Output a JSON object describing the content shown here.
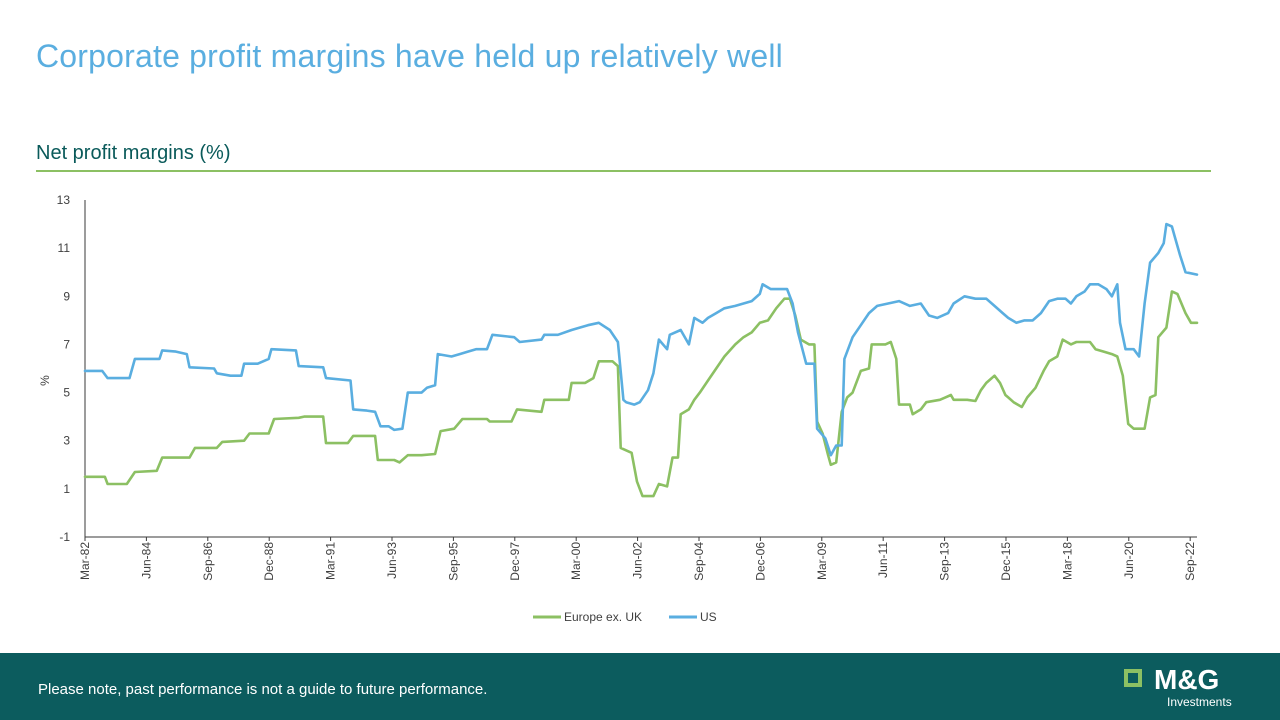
{
  "page": {
    "title": "Corporate profit margins have held up relatively well",
    "subtitle": "Net profit margins (%)",
    "disclaimer": "Please note, past performance is not a guide to future performance.",
    "logo": {
      "name": "M&G",
      "sub": "Investments"
    }
  },
  "colors": {
    "title": "#5aaee0",
    "europe": "#8cc063",
    "us": "#5aaee0",
    "footer": "#0c5c5e"
  },
  "chart_data": {
    "type": "line",
    "ylabel": "%",
    "ylim": [
      -1,
      13
    ],
    "yticks": [
      -1,
      1,
      3,
      5,
      7,
      9,
      11,
      13
    ],
    "xlim": [
      1982.17,
      2022.92
    ],
    "xticks": [
      {
        "label": "Mar-82",
        "x": 1982.17
      },
      {
        "label": "Jun-84",
        "x": 1984.42
      },
      {
        "label": "Sep-86",
        "x": 1986.67
      },
      {
        "label": "Dec-88",
        "x": 1988.92
      },
      {
        "label": "Mar-91",
        "x": 1991.17
      },
      {
        "label": "Jun-93",
        "x": 1993.42
      },
      {
        "label": "Sep-95",
        "x": 1995.67
      },
      {
        "label": "Dec-97",
        "x": 1997.92
      },
      {
        "label": "Mar-00",
        "x": 2000.17
      },
      {
        "label": "Jun-02",
        "x": 2002.42
      },
      {
        "label": "Sep-04",
        "x": 2004.67
      },
      {
        "label": "Dec-06",
        "x": 2006.92
      },
      {
        "label": "Mar-09",
        "x": 2009.17
      },
      {
        "label": "Jun-11",
        "x": 2011.42
      },
      {
        "label": "Sep-13",
        "x": 2013.67
      },
      {
        "label": "Dec-15",
        "x": 2015.92
      },
      {
        "label": "Mar-18",
        "x": 2018.17
      },
      {
        "label": "Jun-20",
        "x": 2020.42
      },
      {
        "label": "Sep-22",
        "x": 2022.67
      }
    ],
    "legend_position": "bottom",
    "series": [
      {
        "name": "Europe ex. UK",
        "color": "#8cc063",
        "points": [
          [
            1982.17,
            1.5
          ],
          [
            1982.9,
            1.5
          ],
          [
            1983.0,
            1.2
          ],
          [
            1983.7,
            1.2
          ],
          [
            1984.0,
            1.7
          ],
          [
            1984.8,
            1.75
          ],
          [
            1985.0,
            2.3
          ],
          [
            1986.0,
            2.3
          ],
          [
            1986.2,
            2.7
          ],
          [
            1987.0,
            2.7
          ],
          [
            1987.2,
            2.95
          ],
          [
            1988.0,
            3.0
          ],
          [
            1988.2,
            3.3
          ],
          [
            1988.9,
            3.3
          ],
          [
            1989.1,
            3.9
          ],
          [
            1990.0,
            3.95
          ],
          [
            1990.2,
            4.0
          ],
          [
            1990.9,
            4.0
          ],
          [
            1991.0,
            2.9
          ],
          [
            1991.8,
            2.9
          ],
          [
            1992.0,
            3.2
          ],
          [
            1992.8,
            3.2
          ],
          [
            1992.9,
            2.2
          ],
          [
            1993.5,
            2.2
          ],
          [
            1993.7,
            2.1
          ],
          [
            1994.0,
            2.4
          ],
          [
            1994.5,
            2.4
          ],
          [
            1995.0,
            2.45
          ],
          [
            1995.2,
            3.4
          ],
          [
            1995.7,
            3.5
          ],
          [
            1996.0,
            3.9
          ],
          [
            1996.9,
            3.9
          ],
          [
            1997.0,
            3.8
          ],
          [
            1997.8,
            3.8
          ],
          [
            1998.0,
            4.3
          ],
          [
            1998.9,
            4.2
          ],
          [
            1999.0,
            4.7
          ],
          [
            1999.9,
            4.7
          ],
          [
            2000.0,
            5.4
          ],
          [
            2000.5,
            5.4
          ],
          [
            2000.8,
            5.6
          ],
          [
            2001.0,
            6.3
          ],
          [
            2001.5,
            6.3
          ],
          [
            2001.7,
            6.1
          ],
          [
            2001.8,
            2.7
          ],
          [
            2002.2,
            2.5
          ],
          [
            2002.4,
            1.3
          ],
          [
            2002.6,
            0.7
          ],
          [
            2003.0,
            0.7
          ],
          [
            2003.2,
            1.2
          ],
          [
            2003.5,
            1.1
          ],
          [
            2003.7,
            2.3
          ],
          [
            2003.9,
            2.3
          ],
          [
            2004.0,
            4.1
          ],
          [
            2004.3,
            4.3
          ],
          [
            2004.5,
            4.7
          ],
          [
            2004.7,
            5.0
          ],
          [
            2005.0,
            5.5
          ],
          [
            2005.3,
            6.0
          ],
          [
            2005.6,
            6.5
          ],
          [
            2006.0,
            7.0
          ],
          [
            2006.3,
            7.3
          ],
          [
            2006.6,
            7.5
          ],
          [
            2006.9,
            7.9
          ],
          [
            2007.2,
            8.0
          ],
          [
            2007.5,
            8.5
          ],
          [
            2007.8,
            8.9
          ],
          [
            2008.0,
            8.9
          ],
          [
            2008.2,
            8.2
          ],
          [
            2008.4,
            7.2
          ],
          [
            2008.7,
            7.0
          ],
          [
            2008.9,
            7.0
          ],
          [
            2009.0,
            3.8
          ],
          [
            2009.2,
            3.3
          ],
          [
            2009.4,
            2.4
          ],
          [
            2009.5,
            2.0
          ],
          [
            2009.7,
            2.1
          ],
          [
            2009.9,
            4.2
          ],
          [
            2010.1,
            4.8
          ],
          [
            2010.3,
            5.0
          ],
          [
            2010.6,
            5.9
          ],
          [
            2010.9,
            6.0
          ],
          [
            2011.0,
            7.0
          ],
          [
            2011.5,
            7.0
          ],
          [
            2011.7,
            7.1
          ],
          [
            2011.9,
            6.4
          ],
          [
            2012.0,
            4.5
          ],
          [
            2012.4,
            4.5
          ],
          [
            2012.5,
            4.1
          ],
          [
            2012.8,
            4.3
          ],
          [
            2013.0,
            4.6
          ],
          [
            2013.5,
            4.7
          ],
          [
            2013.7,
            4.8
          ],
          [
            2013.9,
            4.9
          ],
          [
            2014.0,
            4.7
          ],
          [
            2014.5,
            4.7
          ],
          [
            2014.8,
            4.65
          ],
          [
            2015.0,
            5.1
          ],
          [
            2015.2,
            5.4
          ],
          [
            2015.5,
            5.7
          ],
          [
            2015.7,
            5.4
          ],
          [
            2015.9,
            4.9
          ],
          [
            2016.0,
            4.8
          ],
          [
            2016.2,
            4.6
          ],
          [
            2016.5,
            4.4
          ],
          [
            2016.7,
            4.8
          ],
          [
            2017.0,
            5.2
          ],
          [
            2017.3,
            5.9
          ],
          [
            2017.5,
            6.3
          ],
          [
            2017.8,
            6.5
          ],
          [
            2018.0,
            7.2
          ],
          [
            2018.3,
            7.0
          ],
          [
            2018.5,
            7.1
          ],
          [
            2019.0,
            7.1
          ],
          [
            2019.2,
            6.8
          ],
          [
            2019.5,
            6.7
          ],
          [
            2019.8,
            6.6
          ],
          [
            2020.0,
            6.5
          ],
          [
            2020.2,
            5.7
          ],
          [
            2020.4,
            3.7
          ],
          [
            2020.6,
            3.5
          ],
          [
            2021.0,
            3.5
          ],
          [
            2021.2,
            4.8
          ],
          [
            2021.4,
            4.9
          ],
          [
            2021.5,
            7.3
          ],
          [
            2021.8,
            7.7
          ],
          [
            2022.0,
            9.2
          ],
          [
            2022.2,
            9.1
          ],
          [
            2022.5,
            8.3
          ],
          [
            2022.7,
            7.9
          ],
          [
            2022.92,
            7.9
          ]
        ]
      },
      {
        "name": "US",
        "color": "#5aaee0",
        "points": [
          [
            1982.17,
            5.9
          ],
          [
            1982.8,
            5.9
          ],
          [
            1983.0,
            5.6
          ],
          [
            1983.8,
            5.6
          ],
          [
            1984.0,
            6.4
          ],
          [
            1984.9,
            6.4
          ],
          [
            1985.0,
            6.75
          ],
          [
            1985.5,
            6.7
          ],
          [
            1985.9,
            6.6
          ],
          [
            1986.0,
            6.05
          ],
          [
            1986.9,
            6.0
          ],
          [
            1987.0,
            5.8
          ],
          [
            1987.5,
            5.7
          ],
          [
            1987.9,
            5.7
          ],
          [
            1988.0,
            6.2
          ],
          [
            1988.5,
            6.2
          ],
          [
            1988.9,
            6.4
          ],
          [
            1989.0,
            6.8
          ],
          [
            1989.9,
            6.75
          ],
          [
            1990.0,
            6.1
          ],
          [
            1990.9,
            6.05
          ],
          [
            1991.0,
            5.6
          ],
          [
            1991.9,
            5.5
          ],
          [
            1992.0,
            4.3
          ],
          [
            1992.5,
            4.25
          ],
          [
            1992.8,
            4.2
          ],
          [
            1993.0,
            3.6
          ],
          [
            1993.3,
            3.6
          ],
          [
            1993.5,
            3.45
          ],
          [
            1993.8,
            3.5
          ],
          [
            1994.0,
            5.0
          ],
          [
            1994.5,
            5.0
          ],
          [
            1994.7,
            5.2
          ],
          [
            1995.0,
            5.3
          ],
          [
            1995.1,
            6.6
          ],
          [
            1995.6,
            6.5
          ],
          [
            1995.9,
            6.6
          ],
          [
            1996.2,
            6.7
          ],
          [
            1996.5,
            6.8
          ],
          [
            1996.9,
            6.8
          ],
          [
            1997.1,
            7.4
          ],
          [
            1997.9,
            7.3
          ],
          [
            1998.1,
            7.1
          ],
          [
            1998.9,
            7.2
          ],
          [
            1999.0,
            7.4
          ],
          [
            1999.5,
            7.4
          ],
          [
            2000.0,
            7.6
          ],
          [
            2000.3,
            7.7
          ],
          [
            2000.6,
            7.8
          ],
          [
            2001.0,
            7.9
          ],
          [
            2001.4,
            7.6
          ],
          [
            2001.7,
            7.1
          ],
          [
            2001.9,
            4.7
          ],
          [
            2002.0,
            4.6
          ],
          [
            2002.3,
            4.5
          ],
          [
            2002.5,
            4.6
          ],
          [
            2002.8,
            5.1
          ],
          [
            2003.0,
            5.8
          ],
          [
            2003.2,
            7.2
          ],
          [
            2003.5,
            6.8
          ],
          [
            2003.6,
            7.4
          ],
          [
            2004.0,
            7.6
          ],
          [
            2004.3,
            7.0
          ],
          [
            2004.5,
            8.1
          ],
          [
            2004.8,
            7.9
          ],
          [
            2005.0,
            8.1
          ],
          [
            2005.3,
            8.3
          ],
          [
            2005.6,
            8.5
          ],
          [
            2006.0,
            8.6
          ],
          [
            2006.3,
            8.7
          ],
          [
            2006.6,
            8.8
          ],
          [
            2006.9,
            9.1
          ],
          [
            2007.0,
            9.5
          ],
          [
            2007.3,
            9.3
          ],
          [
            2007.6,
            9.3
          ],
          [
            2007.9,
            9.3
          ],
          [
            2008.1,
            8.7
          ],
          [
            2008.3,
            7.5
          ],
          [
            2008.6,
            6.2
          ],
          [
            2008.9,
            6.2
          ],
          [
            2009.0,
            3.5
          ],
          [
            2009.3,
            3.1
          ],
          [
            2009.5,
            2.4
          ],
          [
            2009.7,
            2.8
          ],
          [
            2009.9,
            2.8
          ],
          [
            2010.0,
            6.4
          ],
          [
            2010.3,
            7.3
          ],
          [
            2010.6,
            7.8
          ],
          [
            2010.9,
            8.3
          ],
          [
            2011.2,
            8.6
          ],
          [
            2011.6,
            8.7
          ],
          [
            2012.0,
            8.8
          ],
          [
            2012.4,
            8.6
          ],
          [
            2012.8,
            8.7
          ],
          [
            2013.1,
            8.2
          ],
          [
            2013.4,
            8.1
          ],
          [
            2013.8,
            8.3
          ],
          [
            2014.0,
            8.7
          ],
          [
            2014.4,
            9.0
          ],
          [
            2014.8,
            8.9
          ],
          [
            2015.2,
            8.9
          ],
          [
            2015.5,
            8.6
          ],
          [
            2015.8,
            8.3
          ],
          [
            2016.0,
            8.1
          ],
          [
            2016.3,
            7.9
          ],
          [
            2016.6,
            8.0
          ],
          [
            2016.9,
            8.0
          ],
          [
            2017.2,
            8.3
          ],
          [
            2017.5,
            8.8
          ],
          [
            2017.8,
            8.9
          ],
          [
            2018.1,
            8.9
          ],
          [
            2018.3,
            8.7
          ],
          [
            2018.5,
            9.0
          ],
          [
            2018.8,
            9.2
          ],
          [
            2019.0,
            9.5
          ],
          [
            2019.3,
            9.5
          ],
          [
            2019.6,
            9.3
          ],
          [
            2019.8,
            9.0
          ],
          [
            2020.0,
            9.5
          ],
          [
            2020.1,
            7.9
          ],
          [
            2020.3,
            6.8
          ],
          [
            2020.6,
            6.8
          ],
          [
            2020.8,
            6.5
          ],
          [
            2021.0,
            8.7
          ],
          [
            2021.2,
            10.4
          ],
          [
            2021.5,
            10.8
          ],
          [
            2021.7,
            11.2
          ],
          [
            2021.8,
            12.0
          ],
          [
            2022.0,
            11.9
          ],
          [
            2022.1,
            11.5
          ],
          [
            2022.3,
            10.7
          ],
          [
            2022.5,
            10.0
          ],
          [
            2022.92,
            9.9
          ]
        ]
      }
    ]
  }
}
